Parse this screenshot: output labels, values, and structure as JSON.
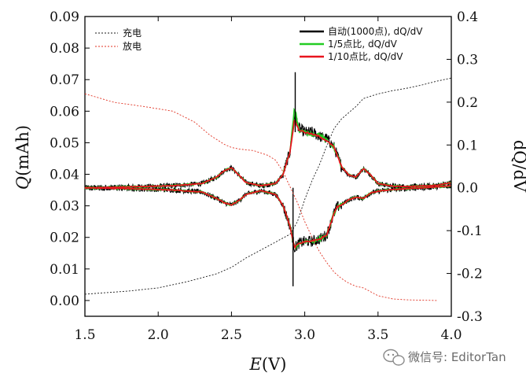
{
  "chart_data": {
    "type": "line",
    "x_axis": {
      "label_symbol": "E",
      "label_unit": "(V)",
      "range": [
        1.5,
        4.0
      ],
      "ticks": [
        {
          "value": 1.5,
          "label": "1.5"
        },
        {
          "value": 2.0,
          "label": "2.0"
        },
        {
          "value": 2.5,
          "label": "2.5"
        },
        {
          "value": 3.0,
          "label": "3.0"
        },
        {
          "value": 3.5,
          "label": "3.5"
        },
        {
          "value": 4.0,
          "label": "4.0"
        }
      ]
    },
    "y_left": {
      "label_symbol": "Q",
      "label_unit": "(mAh)",
      "range": [
        -0.005,
        0.09
      ],
      "ticks": [
        {
          "value": 0.0,
          "label": "0.00"
        },
        {
          "value": 0.01,
          "label": "0.01"
        },
        {
          "value": 0.02,
          "label": "0.02"
        },
        {
          "value": 0.03,
          "label": "0.03"
        },
        {
          "value": 0.04,
          "label": "0.04"
        },
        {
          "value": 0.05,
          "label": "0.05"
        },
        {
          "value": 0.06,
          "label": "0.06"
        },
        {
          "value": 0.07,
          "label": "0.07"
        },
        {
          "value": 0.08,
          "label": "0.08"
        },
        {
          "value": 0.09,
          "label": "0.09"
        }
      ]
    },
    "y_right": {
      "label": "dQ/dV",
      "range": [
        -0.3,
        0.4
      ],
      "ticks": [
        {
          "value": 0.4,
          "label": "0.4"
        },
        {
          "value": 0.3,
          "label": "0.3"
        },
        {
          "value": 0.2,
          "label": "0.2"
        },
        {
          "value": 0.1,
          "label": "0.1"
        },
        {
          "value": 0.0,
          "label": "0.0"
        },
        {
          "value": -0.1,
          "label": "-0.1"
        },
        {
          "value": -0.2,
          "label": "-0.2"
        },
        {
          "value": -0.3,
          "label": "-0.3"
        }
      ]
    },
    "series": [
      {
        "name": "充电",
        "axis": "left",
        "style": "dashed",
        "color": "#1a1a1a",
        "x": [
          1.5,
          1.8,
          2.0,
          2.2,
          2.4,
          2.5,
          2.6,
          2.7,
          2.8,
          2.9,
          2.95,
          3.0,
          3.05,
          3.1,
          3.15,
          3.2,
          3.25,
          3.3,
          3.35,
          3.4,
          3.5,
          3.6,
          3.7,
          3.8,
          3.9,
          4.0
        ],
        "y": [
          0.002,
          0.003,
          0.004,
          0.006,
          0.0085,
          0.0105,
          0.0135,
          0.016,
          0.0185,
          0.021,
          0.025,
          0.032,
          0.038,
          0.043,
          0.049,
          0.0545,
          0.0575,
          0.0595,
          0.0615,
          0.064,
          0.0655,
          0.0665,
          0.0673,
          0.0683,
          0.0695,
          0.0705
        ]
      },
      {
        "name": "放电",
        "axis": "left",
        "style": "dashed",
        "color": "#e03020",
        "x": [
          1.5,
          1.7,
          1.9,
          2.1,
          2.25,
          2.35,
          2.45,
          2.5,
          2.55,
          2.65,
          2.75,
          2.8,
          2.85,
          2.9,
          2.95,
          3.0,
          3.05,
          3.1,
          3.15,
          3.2,
          3.25,
          3.3,
          3.35,
          3.4,
          3.5,
          3.6,
          3.7,
          3.8,
          3.9
        ],
        "y": [
          0.0655,
          0.0628,
          0.0615,
          0.06,
          0.0565,
          0.0525,
          0.0495,
          0.0485,
          0.048,
          0.0475,
          0.046,
          0.0445,
          0.041,
          0.036,
          0.031,
          0.025,
          0.02,
          0.0155,
          0.012,
          0.009,
          0.007,
          0.0055,
          0.0045,
          0.004,
          0.0015,
          0.0005,
          0.0002,
          0.0001,
          0.0
        ]
      },
      {
        "name": "自动(1000点), dQ/dV",
        "axis": "right",
        "style": "solid-noisy",
        "color": "#000000",
        "x": [
          1.5,
          1.8,
          2.1,
          2.3,
          2.4,
          2.45,
          2.5,
          2.55,
          2.6,
          2.7,
          2.8,
          2.85,
          2.9,
          2.93,
          2.96,
          3.0,
          3.05,
          3.1,
          3.15,
          3.2,
          3.25,
          3.3,
          3.35,
          3.4,
          3.45,
          3.5,
          3.6,
          3.7,
          3.8,
          3.9,
          4.0
        ],
        "y": [
          0.0,
          0.002,
          0.005,
          0.01,
          0.025,
          0.04,
          0.047,
          0.03,
          0.012,
          0.005,
          0.01,
          0.03,
          0.085,
          0.17,
          0.14,
          0.13,
          0.13,
          0.12,
          0.115,
          0.095,
          0.05,
          0.03,
          0.025,
          0.045,
          0.03,
          0.01,
          0.004,
          0.003,
          0.004,
          0.006,
          0.012
        ]
      },
      {
        "name": "1/5点比, dQ/dV",
        "axis": "right",
        "style": "solid",
        "color": "#22cc22",
        "x": [
          1.5,
          1.8,
          2.1,
          2.3,
          2.4,
          2.45,
          2.5,
          2.55,
          2.6,
          2.7,
          2.8,
          2.85,
          2.9,
          2.93,
          2.96,
          3.0,
          3.05,
          3.1,
          3.15,
          3.2,
          3.25,
          3.3,
          3.35,
          3.4,
          3.45,
          3.5,
          3.6,
          3.7,
          3.8,
          3.9,
          4.0
        ],
        "y": [
          0.0,
          0.002,
          0.005,
          0.01,
          0.025,
          0.04,
          0.047,
          0.03,
          0.012,
          0.005,
          0.01,
          0.03,
          0.085,
          0.19,
          0.135,
          0.13,
          0.125,
          0.125,
          0.11,
          0.095,
          0.05,
          0.03,
          0.025,
          0.045,
          0.03,
          0.01,
          0.004,
          0.003,
          0.004,
          0.006,
          0.012
        ]
      },
      {
        "name": "1/10点比, dQ/dV",
        "axis": "right",
        "style": "solid",
        "color": "#e8141e",
        "x": [
          1.5,
          1.8,
          2.1,
          2.3,
          2.4,
          2.45,
          2.5,
          2.55,
          2.6,
          2.7,
          2.8,
          2.85,
          2.9,
          2.93,
          2.96,
          3.0,
          3.05,
          3.1,
          3.15,
          3.2,
          3.25,
          3.3,
          3.35,
          3.4,
          3.45,
          3.5,
          3.6,
          3.7,
          3.8,
          3.9,
          4.0
        ],
        "y": [
          0.0,
          0.002,
          0.005,
          0.01,
          0.025,
          0.04,
          0.047,
          0.03,
          0.012,
          0.005,
          0.01,
          0.03,
          0.085,
          0.16,
          0.135,
          0.13,
          0.125,
          0.12,
          0.11,
          0.095,
          0.05,
          0.03,
          0.025,
          0.045,
          0.03,
          0.01,
          0.004,
          0.003,
          0.004,
          0.006,
          0.012
        ]
      }
    ],
    "discharge_dqdv_branch": {
      "x": [
        1.5,
        1.8,
        2.1,
        2.3,
        2.4,
        2.45,
        2.5,
        2.55,
        2.6,
        2.7,
        2.8,
        2.85,
        2.9,
        2.93,
        2.96,
        3.0,
        3.05,
        3.1,
        3.15,
        3.2,
        3.22,
        3.25,
        3.3,
        3.35,
        3.4,
        3.45,
        3.5,
        3.6,
        3.7,
        3.8,
        3.9,
        4.0
      ],
      "y": [
        0.0,
        -0.002,
        -0.005,
        -0.01,
        -0.025,
        -0.035,
        -0.04,
        -0.03,
        -0.015,
        -0.007,
        -0.015,
        -0.04,
        -0.09,
        -0.14,
        -0.13,
        -0.125,
        -0.125,
        -0.12,
        -0.11,
        -0.06,
        -0.045,
        -0.04,
        -0.028,
        -0.022,
        -0.025,
        -0.012,
        -0.008,
        -0.004,
        -0.002,
        0.0,
        0.002,
        0.005
      ]
    },
    "legend": {
      "placement": "top-left and top-right",
      "left_entries": [
        "充电",
        "放电"
      ],
      "right_entries": [
        "自动(1000点), dQ/dV",
        "1/5点比, dQ/dV",
        "1/10点比, dQ/dV"
      ]
    },
    "grid": false
  },
  "watermark": {
    "text": "微信号: EditorTan",
    "icon": "wechat-icon"
  }
}
